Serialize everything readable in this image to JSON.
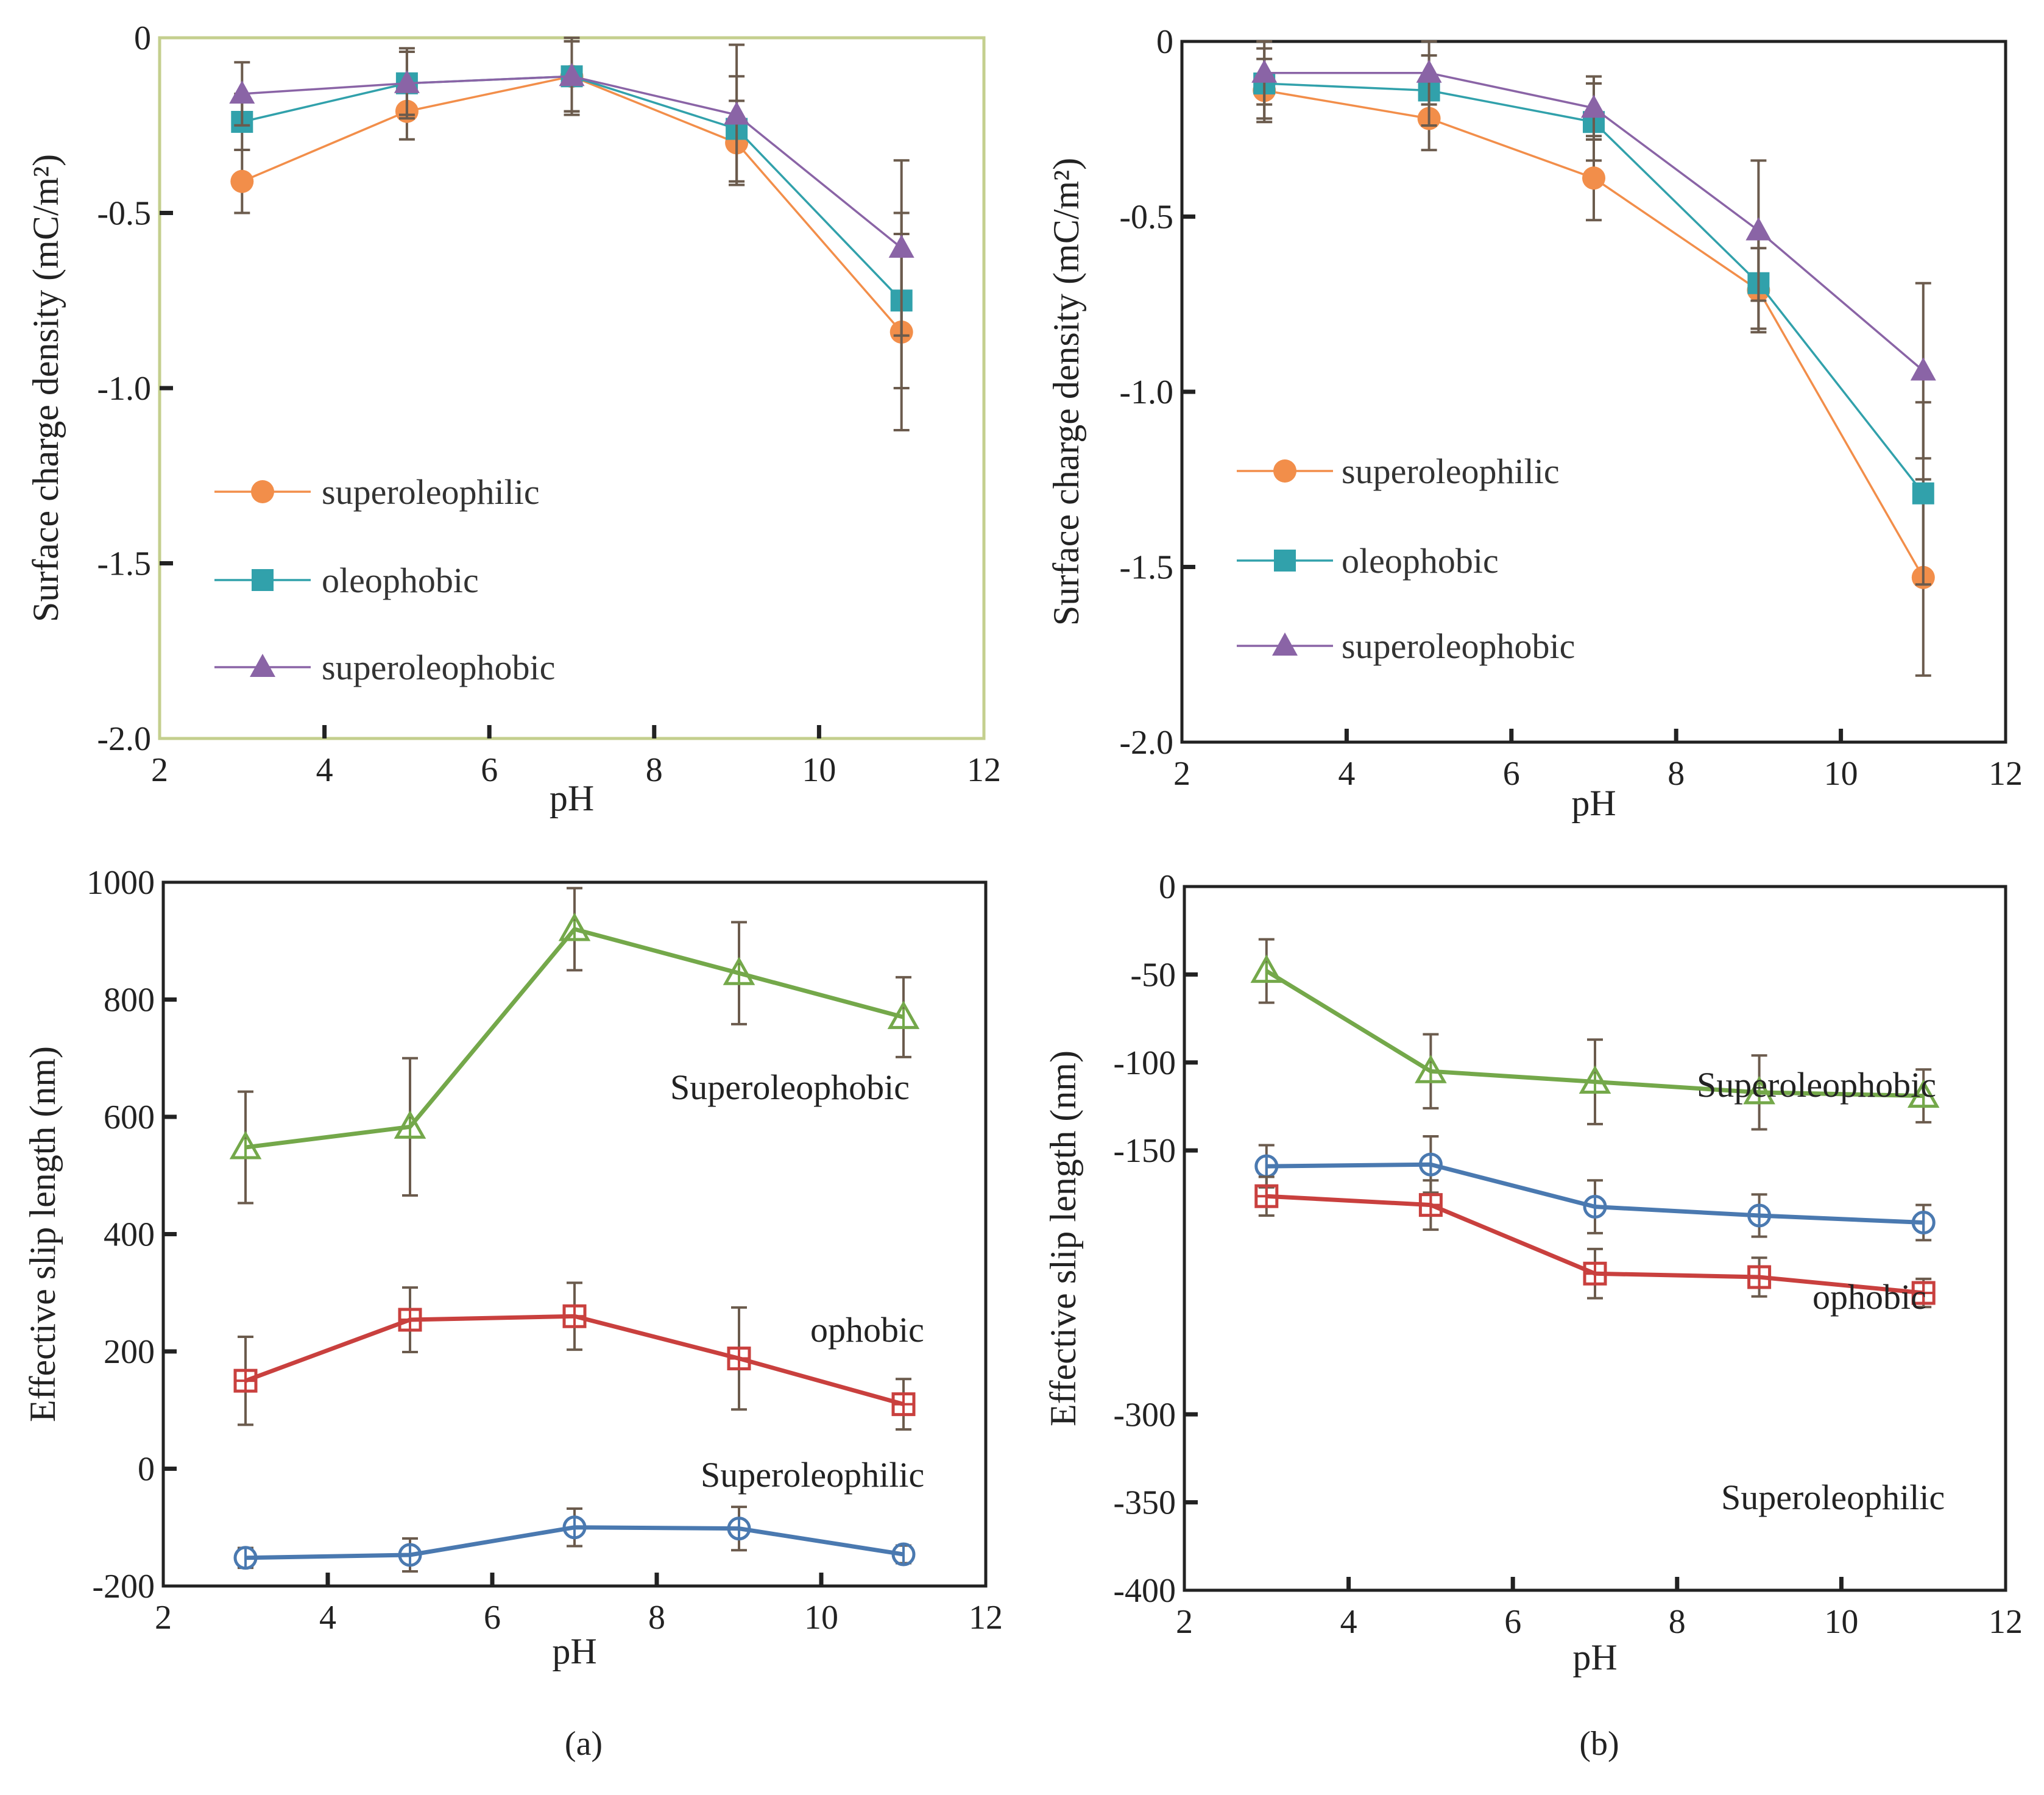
{
  "figure": {
    "captions": [
      "(a)",
      "(b)"
    ]
  },
  "chart_data": [
    {
      "id": "a-top",
      "type": "line",
      "title": "",
      "xlabel": "pH",
      "ylabel": "Surface charge density (mC/m²)",
      "xlim": [
        2,
        12
      ],
      "ylim": [
        -2.0,
        0
      ],
      "xticks": [
        2,
        4,
        6,
        8,
        10,
        12
      ],
      "yticks": [
        0,
        -0.5,
        -1.0,
        -1.5,
        -2.0
      ],
      "ytick_labels": [
        "0",
        "-0.5",
        "-1.0",
        "-1.5",
        "-2.0"
      ],
      "legend": "left",
      "x": [
        3,
        5,
        7,
        9,
        11
      ],
      "series": [
        {
          "name": "superoleophilic",
          "marker": "circle",
          "color": "#f28e4a",
          "values": [
            -0.41,
            -0.21,
            -0.11,
            -0.3,
            -0.84
          ],
          "errors": [
            0.09,
            0.08,
            0.1,
            0.12,
            0.28
          ]
        },
        {
          "name": "oleophobic",
          "marker": "square",
          "color": "#31a1ab",
          "values": [
            -0.24,
            -0.13,
            -0.11,
            -0.26,
            -0.75
          ],
          "errors": [
            0.08,
            0.09,
            0.1,
            0.15,
            0.25
          ]
        },
        {
          "name": "superoleophobic",
          "marker": "triangle",
          "color": "#8a64a6",
          "values": [
            -0.16,
            -0.13,
            -0.11,
            -0.22,
            -0.6
          ],
          "errors": [
            0.09,
            0.1,
            0.11,
            0.2,
            0.25
          ]
        }
      ]
    },
    {
      "id": "b-top",
      "type": "line",
      "title": "",
      "xlabel": "pH",
      "ylabel": "Surface charge density (mC/m²)",
      "xlim": [
        2,
        12
      ],
      "ylim": [
        -2.0,
        0
      ],
      "xticks": [
        2,
        4,
        6,
        8,
        10,
        12
      ],
      "yticks": [
        0,
        -0.5,
        -1.0,
        -1.5,
        -2.0
      ],
      "ytick_labels": [
        "0",
        "-0.5",
        "-1.0",
        "-1.5",
        "-2.0"
      ],
      "legend": "left",
      "x": [
        3,
        5,
        7,
        9,
        11
      ],
      "series": [
        {
          "name": "superoleophilic",
          "marker": "circle",
          "color": "#f28e4a",
          "values": [
            -0.14,
            -0.22,
            -0.39,
            -0.71,
            -1.53
          ],
          "errors": [
            0.09,
            0.09,
            0.12,
            0.12,
            0.28
          ]
        },
        {
          "name": "oleophobic",
          "marker": "square",
          "color": "#31a1ab",
          "values": [
            -0.12,
            -0.14,
            -0.23,
            -0.69,
            -1.29
          ],
          "errors": [
            0.1,
            0.1,
            0.11,
            0.13,
            0.26
          ]
        },
        {
          "name": "superoleophobic",
          "marker": "triangle",
          "color": "#8a64a6",
          "values": [
            -0.09,
            -0.09,
            -0.19,
            -0.54,
            -0.94
          ],
          "errors": [
            0.09,
            0.09,
            0.09,
            0.2,
            0.25
          ]
        }
      ]
    },
    {
      "id": "a-bottom",
      "type": "line",
      "title": "",
      "xlabel": "pH",
      "ylabel": "Effective slip length (nm)",
      "xlim": [
        2,
        12
      ],
      "ylim": [
        -200,
        1000
      ],
      "xticks": [
        2,
        4,
        6,
        8,
        10,
        12
      ],
      "yticks": [
        1000,
        800,
        600,
        400,
        200,
        0,
        -200
      ],
      "ytick_labels": [
        "1000",
        "800",
        "600",
        "400",
        "200",
        "0",
        "-200"
      ],
      "x": [
        3,
        5,
        7,
        9,
        11
      ],
      "annotations": [
        "Superoleophobic",
        "ophobic",
        "Superoleophilic"
      ],
      "series": [
        {
          "name": "Superoleophobic",
          "marker": "open-triangle",
          "color": "#74a84a",
          "values": [
            548,
            583,
            920,
            845,
            770
          ],
          "errors": [
            95,
            117,
            70,
            87,
            68
          ]
        },
        {
          "name": "ophobic",
          "marker": "open-square",
          "color": "#c9403e",
          "values": [
            150,
            254,
            260,
            188,
            110
          ],
          "errors": [
            75,
            55,
            57,
            87,
            43
          ]
        },
        {
          "name": "Superoleophilic",
          "marker": "open-circle",
          "color": "#4a79b0",
          "values": [
            -152,
            -147,
            -100,
            -102,
            -146
          ],
          "errors": [
            17,
            28,
            32,
            37,
            15
          ]
        }
      ]
    },
    {
      "id": "b-bottom",
      "type": "line",
      "title": "",
      "xlabel": "pH",
      "ylabel": "Effective slip length (nm)",
      "xlim": [
        2,
        12
      ],
      "ylim": [
        -400,
        0
      ],
      "xticks": [
        2,
        4,
        6,
        8,
        10,
        12
      ],
      "yticks": [
        0,
        -50,
        -100,
        -150,
        -300,
        -350,
        -400
      ],
      "ytick_labels": [
        "0",
        "-50",
        "-100",
        "-150",
        "-300",
        "-350",
        "-400"
      ],
      "x": [
        3,
        5,
        7,
        9,
        11
      ],
      "annotations": [
        "Superoleophobic",
        "ophobic",
        "Superoleophilic"
      ],
      "series": [
        {
          "name": "Superoleophobic",
          "marker": "open-triangle",
          "color": "#74a84a",
          "values": [
            -48,
            -105,
            -111,
            -117,
            -119
          ],
          "errors": [
            18,
            21,
            24,
            21,
            15
          ]
        },
        {
          "name": "ophobic",
          "marker": "open-circle",
          "color": "#4a79b0",
          "values": [
            -159,
            -158,
            -182,
            -187,
            -191
          ],
          "errors": [
            12,
            16,
            15,
            12,
            10
          ]
        },
        {
          "name": "Superoleophilic",
          "marker": "open-square",
          "color": "#c9403e",
          "values": [
            -176,
            -181,
            -220,
            -222,
            -231
          ],
          "errors": [
            11,
            14,
            14,
            11,
            8
          ]
        }
      ]
    }
  ]
}
